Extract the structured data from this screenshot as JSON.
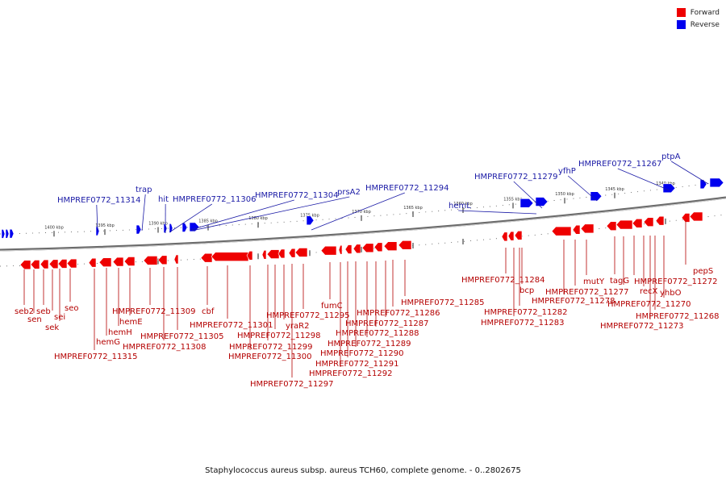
{
  "legend": {
    "items": [
      {
        "label": "Forward",
        "color": "#ee0000"
      },
      {
        "label": "Reverse",
        "color": "#0000ee"
      }
    ]
  },
  "caption": "Staphylococcus aureus subsp. aureus TCH60, complete genome. - 0..2802675",
  "colors": {
    "forward": "#ee0000",
    "reverse": "#0000ee",
    "backbone": "#888888"
  },
  "kbp_labels": [
    "1400 kbp",
    "1395 kbp",
    "1390 kbp",
    "1385 kbp",
    "1380 kbp",
    "1375 kbp",
    "1370 kbp",
    "1365 kbp",
    "1360 kbp",
    "1355 kbp",
    "1350 kbp",
    "1345 kbp",
    "1340 kbp"
  ],
  "reverse_labels": [
    "HMPREF0772_11314",
    "trap",
    "hit",
    "HMPREF0772_11306",
    "HMPREF0772_11304",
    "prsA2",
    "HMPREF0772_11294",
    "hemL",
    "HMPREF0772_11279",
    "yfhP",
    "HMPREF0772_11267",
    "ptpA"
  ],
  "forward_labels": [
    "seb2",
    "sen",
    "seb",
    "sei",
    "sek",
    "seo",
    "HMPREF0772_11315",
    "hemG",
    "hemH",
    "hemE",
    "HMPREF0772_11309",
    "HMPREF0772_11308",
    "HMPREF0772_11305",
    "cbf",
    "HMPREF0772_11301",
    "HMPREF0772_11300",
    "HMPREF0772_11299",
    "HMPREF0772_11298",
    "yraR2",
    "HMPREF0772_11297",
    "HMPREF0772_11295",
    "fumC",
    "HMPREF0772_11292",
    "HMPREF0772_11291",
    "HMPREF0772_11290",
    "HMPREF0772_11289",
    "HMPREF0772_11288",
    "HMPREF0772_11287",
    "HMPREF0772_11286",
    "HMPREF0772_11285",
    "HMPREF0772_11284",
    "HMPREF0772_11283",
    "HMPREF0772_11282",
    "bcp",
    "HMPREF0772_11278",
    "HMPREF0772_11277",
    "mutY",
    "tagG",
    "recX",
    "HMPREF0772_11272",
    "yhbO",
    "HMPREF0772_11273",
    "HMPREF0772_11270",
    "HMPREF0772_11268",
    "pepS"
  ]
}
